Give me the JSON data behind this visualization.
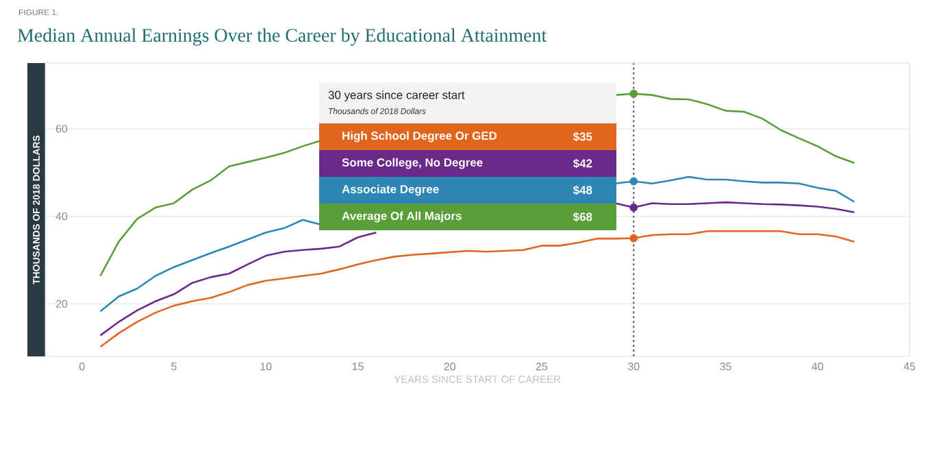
{
  "chart_data": {
    "type": "line",
    "subtitle": "FIGURE 1.",
    "title": "Median Annual Earnings Over the Career by Educational Attainment",
    "xlabel": "YEARS SINCE START OF CAREER",
    "ylabel": "THOUSANDS OF 2018 DOLLARS",
    "legend_title": "30 years since career start",
    "annotations": [
      "Thousands of 2018 Dollars",
      "$35",
      "$42",
      "$48",
      "$68"
    ],
    "x": [
      1,
      2,
      3,
      4,
      5,
      6,
      7,
      8,
      9,
      10,
      11,
      12,
      13,
      14,
      15,
      16,
      17,
      18,
      19,
      20,
      21,
      22,
      23,
      24,
      25,
      26,
      27,
      28,
      29,
      30,
      31,
      32,
      33,
      34,
      35,
      36,
      37,
      38,
      39,
      40,
      41,
      42
    ],
    "series": [
      {
        "name": "High School Degree Or GED",
        "color": "#e0661f",
        "values": [
          10.2,
          13.3,
          15.9,
          18,
          19.6,
          20.6,
          21.4,
          22.7,
          24.3,
          25.3,
          25.8,
          26.4,
          26.9,
          27.9,
          29,
          30,
          30.8,
          31.2,
          31.5,
          31.8,
          32.1,
          31.9,
          32.1,
          32.3,
          33.3,
          33.3,
          34,
          34.9,
          34.9,
          35,
          35.7,
          35.9,
          35.9,
          36.6,
          36.6,
          36.6,
          36.6,
          36.6,
          35.9,
          35.9,
          35.4,
          34.2
        ]
      },
      {
        "name": "Some College, No Degree",
        "color": "#6a2a8a",
        "values": [
          12.8,
          15.9,
          18.5,
          20.6,
          22.2,
          24.8,
          26.1,
          26.9,
          29,
          31,
          31.9,
          32.3,
          32.6,
          33.1,
          35.2,
          36.3,
          null,
          null,
          null,
          null,
          null,
          null,
          null,
          null,
          null,
          null,
          null,
          null,
          43,
          42,
          43,
          42.8,
          42.8,
          43,
          43.2,
          43,
          42.8,
          42.7,
          42.5,
          42.2,
          41.7,
          40.9
        ]
      },
      {
        "name": "Associate Degree",
        "color": "#2e86b5",
        "values": [
          18.3,
          21.7,
          23.5,
          26.4,
          28.4,
          30,
          31.6,
          33.1,
          34.7,
          36.3,
          37.3,
          39.2,
          38.1,
          null,
          null,
          null,
          null,
          null,
          null,
          null,
          null,
          null,
          null,
          null,
          null,
          null,
          null,
          null,
          47.5,
          48,
          47.5,
          48.2,
          49,
          48.4,
          48.4,
          48,
          47.7,
          47.7,
          47.5,
          46.5,
          45.8,
          43.3
        ]
      },
      {
        "name": "Average Of All Majors",
        "color": "#5a9e3a",
        "values": [
          26.4,
          34.2,
          39.4,
          42,
          43,
          46.1,
          48.2,
          51.4,
          52.4,
          53.4,
          54.5,
          56,
          57.3,
          null,
          null,
          null,
          null,
          null,
          null,
          null,
          null,
          null,
          null,
          null,
          null,
          null,
          null,
          null,
          67.7,
          68,
          67.7,
          66.8,
          66.7,
          65.6,
          64.1,
          63.9,
          62.3,
          59.7,
          57.8,
          56,
          53.7,
          52.2
        ]
      }
    ],
    "xlim": [
      -2,
      45
    ],
    "ylim": [
      8,
      75
    ],
    "xticks": [
      0,
      5,
      10,
      15,
      20,
      25,
      30,
      35,
      40,
      45
    ],
    "yticks": [
      20,
      40,
      60
    ],
    "grid": "y",
    "legend": "top",
    "ref_lines": [
      {
        "axis": "x",
        "value": 30,
        "color": "#555555",
        "line_style": "dotted"
      }
    ]
  }
}
